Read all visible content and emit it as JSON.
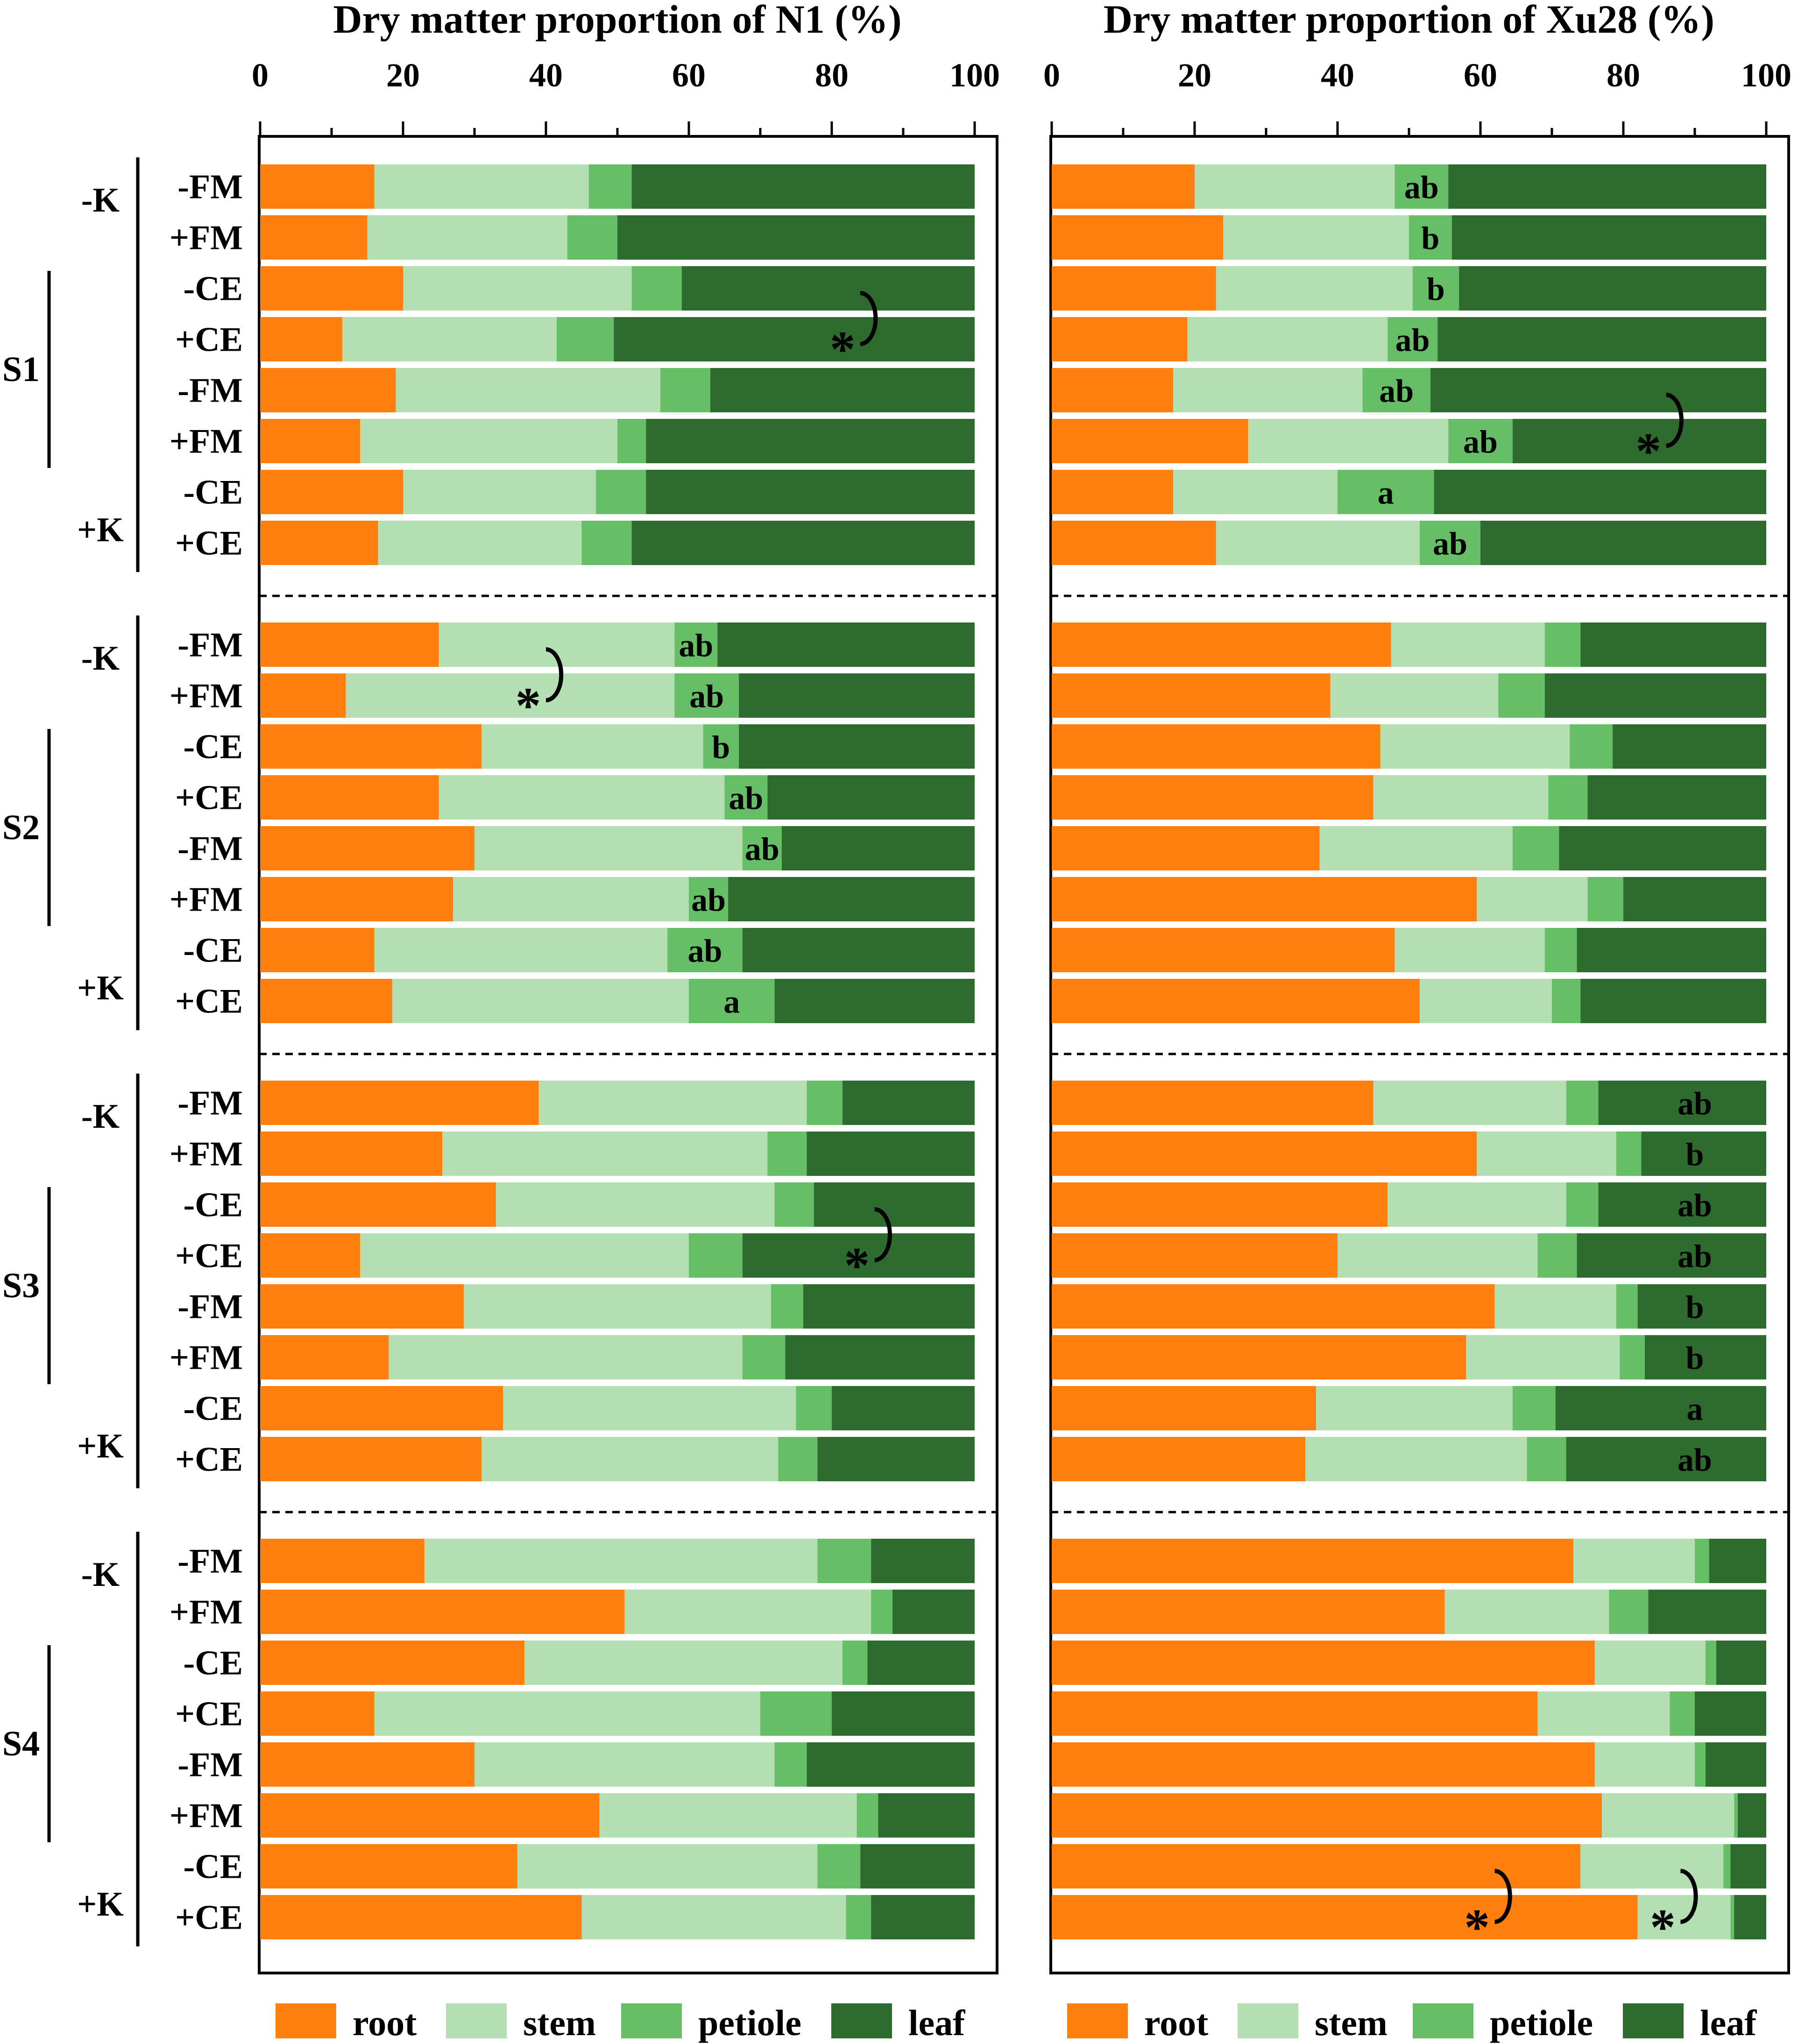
{
  "chart_data": [
    {
      "type": "bar",
      "stacked": true,
      "orientation": "horizontal",
      "title": "Dry matter proportion of N1 (%)",
      "xlim": [
        0,
        100
      ],
      "xticks": [
        "0",
        "20",
        "40",
        "60",
        "80",
        "100"
      ],
      "sections": [
        {
          "label": "S1",
          "groups": [
            {
              "label": "-K"
            },
            {
              "label": "+K"
            }
          ],
          "rows": [
            {
              "label": "-FM",
              "values": [
                16,
                30,
                6,
                48
              ],
              "letter": ""
            },
            {
              "label": "+FM",
              "values": [
                15,
                28,
                7,
                50
              ],
              "letter": ""
            },
            {
              "label": "-CE",
              "values": [
                20,
                32,
                7,
                41
              ],
              "letter": ""
            },
            {
              "label": "+CE",
              "values": [
                11.5,
                30,
                8,
                50.5
              ],
              "letter": ""
            },
            {
              "label": "-FM",
              "values": [
                19,
                37,
                7,
                37
              ],
              "letter": ""
            },
            {
              "label": "+FM",
              "values": [
                14,
                36,
                4,
                46
              ],
              "letter": ""
            },
            {
              "label": "-CE",
              "values": [
                20,
                27,
                7,
                46
              ],
              "letter": ""
            },
            {
              "label": "+CE",
              "values": [
                16.5,
                28.5,
                7,
                48
              ],
              "letter": ""
            }
          ],
          "annotations": [
            {
              "from_row": 2,
              "to_row": 3,
              "x": 84
            }
          ]
        },
        {
          "label": "S2",
          "groups": [
            {
              "label": "-K"
            },
            {
              "label": "+K"
            }
          ],
          "rows": [
            {
              "label": "-FM",
              "values": [
                25,
                33,
                6,
                36
              ],
              "letter": "ab"
            },
            {
              "label": "+FM",
              "values": [
                12,
                46,
                9,
                33
              ],
              "letter": "ab"
            },
            {
              "label": "-CE",
              "values": [
                31,
                31,
                5,
                33
              ],
              "letter": "b"
            },
            {
              "label": "+CE",
              "values": [
                25,
                40,
                6,
                29
              ],
              "letter": "ab"
            },
            {
              "label": "-FM",
              "values": [
                30,
                37.5,
                5.5,
                27
              ],
              "letter": "ab"
            },
            {
              "label": "+FM",
              "values": [
                27,
                33,
                5.5,
                34.5
              ],
              "letter": "ab"
            },
            {
              "label": "-CE",
              "values": [
                16,
                41,
                10.5,
                32.5
              ],
              "letter": "ab"
            },
            {
              "label": "+CE",
              "values": [
                18.5,
                41.5,
                12,
                28
              ],
              "letter": "a"
            }
          ],
          "annotations": [
            {
              "from_row": 0,
              "to_row": 1,
              "x": 40
            }
          ]
        },
        {
          "label": "S3",
          "groups": [
            {
              "label": "-K"
            },
            {
              "label": "+K"
            }
          ],
          "rows": [
            {
              "label": "-FM",
              "values": [
                39,
                37.5,
                5,
                18.5
              ],
              "letter": ""
            },
            {
              "label": "+FM",
              "values": [
                25.5,
                45.5,
                5.5,
                23.5
              ],
              "letter": ""
            },
            {
              "label": "-CE",
              "values": [
                33,
                39,
                5.5,
                22.5
              ],
              "letter": ""
            },
            {
              "label": "+CE",
              "values": [
                14,
                46,
                7.5,
                32.5
              ],
              "letter": ""
            },
            {
              "label": "-FM",
              "values": [
                28.5,
                43,
                4.5,
                24
              ],
              "letter": ""
            },
            {
              "label": "+FM",
              "values": [
                18,
                49.5,
                6,
                26.5
              ],
              "letter": ""
            },
            {
              "label": "-CE",
              "values": [
                34,
                41,
                5,
                20
              ],
              "letter": ""
            },
            {
              "label": "+CE",
              "values": [
                31,
                41.5,
                5.5,
                22
              ],
              "letter": ""
            }
          ],
          "annotations": [
            {
              "from_row": 2,
              "to_row": 3,
              "x": 86
            }
          ]
        },
        {
          "label": "S4",
          "groups": [
            {
              "label": "-K"
            },
            {
              "label": "+K"
            }
          ],
          "rows": [
            {
              "label": "-FM",
              "values": [
                23,
                55,
                7.5,
                14.5
              ],
              "letter": ""
            },
            {
              "label": "+FM",
              "values": [
                51,
                34.5,
                3,
                11.5
              ],
              "letter": ""
            },
            {
              "label": "-CE",
              "values": [
                37,
                44.5,
                3.5,
                15
              ],
              "letter": ""
            },
            {
              "label": "+CE",
              "values": [
                16,
                54,
                10,
                20
              ],
              "letter": ""
            },
            {
              "label": "-FM",
              "values": [
                30,
                42,
                4.5,
                23.5
              ],
              "letter": ""
            },
            {
              "label": "+FM",
              "values": [
                47.5,
                36,
                3,
                13.5
              ],
              "letter": ""
            },
            {
              "label": "-CE",
              "values": [
                36,
                42,
                6,
                16
              ],
              "letter": ""
            },
            {
              "label": "+CE",
              "values": [
                45,
                37,
                3.5,
                14.5
              ],
              "letter": ""
            }
          ],
          "annotations": []
        }
      ]
    },
    {
      "type": "bar",
      "stacked": true,
      "orientation": "horizontal",
      "title": "Dry matter proportion of Xu28 (%)",
      "xlim": [
        0,
        100
      ],
      "xticks": [
        "0",
        "20",
        "40",
        "60",
        "80",
        "100"
      ],
      "sections": [
        {
          "label": "",
          "groups": [],
          "rows": [
            {
              "label": "-FM",
              "values": [
                20,
                28,
                7.5,
                44.5
              ],
              "letter": "ab"
            },
            {
              "label": "+FM",
              "values": [
                24,
                26,
                6,
                44
              ],
              "letter": "b"
            },
            {
              "label": "-CE",
              "values": [
                23,
                27.5,
                6.5,
                43
              ],
              "letter": "b"
            },
            {
              "label": "+CE",
              "values": [
                19,
                28,
                7,
                46
              ],
              "letter": "ab"
            },
            {
              "label": "-FM",
              "values": [
                17,
                26.5,
                9.5,
                47
              ],
              "letter": "ab"
            },
            {
              "label": "+FM",
              "values": [
                27.5,
                28,
                9,
                35.5
              ],
              "letter": "ab"
            },
            {
              "label": "-CE",
              "values": [
                17,
                23,
                13.5,
                46.5
              ],
              "letter": "a"
            },
            {
              "label": "+CE",
              "values": [
                23,
                28.5,
                8.5,
                40
              ],
              "letter": "ab"
            }
          ],
          "annotations": [
            {
              "from_row": 4,
              "to_row": 5,
              "x": 86
            }
          ]
        },
        {
          "label": "",
          "groups": [],
          "rows": [
            {
              "label": "-FM",
              "values": [
                47.5,
                21.5,
                5,
                26
              ],
              "letter": ""
            },
            {
              "label": "+FM",
              "values": [
                39,
                23.5,
                6.5,
                31
              ],
              "letter": ""
            },
            {
              "label": "-CE",
              "values": [
                46,
                26.5,
                6,
                21.5
              ],
              "letter": ""
            },
            {
              "label": "+CE",
              "values": [
                45,
                24.5,
                5.5,
                25
              ],
              "letter": ""
            },
            {
              "label": "-FM",
              "values": [
                37.5,
                27,
                6.5,
                29
              ],
              "letter": ""
            },
            {
              "label": "+FM",
              "values": [
                59.5,
                15.5,
                5,
                20
              ],
              "letter": ""
            },
            {
              "label": "-CE",
              "values": [
                48,
                21,
                4.5,
                26.5
              ],
              "letter": ""
            },
            {
              "label": "+CE",
              "values": [
                51.5,
                18.5,
                4,
                26
              ],
              "letter": ""
            }
          ],
          "annotations": []
        },
        {
          "label": "",
          "groups": [],
          "rows": [
            {
              "label": "-FM",
              "values": [
                45,
                27,
                4.5,
                23.5
              ],
              "letter": "ab"
            },
            {
              "label": "+FM",
              "values": [
                59.5,
                19.5,
                3.5,
                17.5
              ],
              "letter": "b"
            },
            {
              "label": "-CE",
              "values": [
                47,
                25,
                4.5,
                23.5
              ],
              "letter": "ab"
            },
            {
              "label": "+CE",
              "values": [
                40,
                28,
                5.5,
                26.5
              ],
              "letter": "ab"
            },
            {
              "label": "-FM",
              "values": [
                62,
                17,
                3,
                18
              ],
              "letter": "b"
            },
            {
              "label": "+FM",
              "values": [
                58,
                21.5,
                3.5,
                17
              ],
              "letter": "b"
            },
            {
              "label": "-CE",
              "values": [
                37,
                27.5,
                6,
                29.5
              ],
              "letter": "a"
            },
            {
              "label": "+CE",
              "values": [
                35.5,
                31,
                5.5,
                28
              ],
              "letter": "ab"
            }
          ],
          "annotations": []
        },
        {
          "label": "",
          "groups": [],
          "rows": [
            {
              "label": "-FM",
              "values": [
                73,
                17,
                2,
                8
              ],
              "letter": ""
            },
            {
              "label": "+FM",
              "values": [
                55,
                23,
                5.5,
                16.5
              ],
              "letter": ""
            },
            {
              "label": "-CE",
              "values": [
                76,
                15.5,
                1.5,
                7
              ],
              "letter": ""
            },
            {
              "label": "+CE",
              "values": [
                68,
                18.5,
                3.5,
                10
              ],
              "letter": ""
            },
            {
              "label": "-FM",
              "values": [
                76,
                14,
                1.5,
                8.5
              ],
              "letter": ""
            },
            {
              "label": "+FM",
              "values": [
                77,
                18.5,
                0.5,
                4
              ],
              "letter": ""
            },
            {
              "label": "-CE",
              "values": [
                74,
                20,
                1,
                5
              ],
              "letter": ""
            },
            {
              "label": "+CE",
              "values": [
                82,
                13,
                0.5,
                4.5
              ],
              "letter": ""
            }
          ],
          "annotations": [
            {
              "from_row": 6,
              "to_row": 7,
              "x": 62
            },
            {
              "from_row": 6,
              "to_row": 7,
              "x": 88
            }
          ]
        }
      ]
    }
  ],
  "legend": {
    "items": [
      {
        "label": "root",
        "color": "#ff7f0e"
      },
      {
        "label": "stem",
        "color": "#b3dfb3"
      },
      {
        "label": "petiole",
        "color": "#66bf66"
      },
      {
        "label": "leaf",
        "color": "#2d6b2f"
      }
    ]
  },
  "significance_symbol": "*"
}
